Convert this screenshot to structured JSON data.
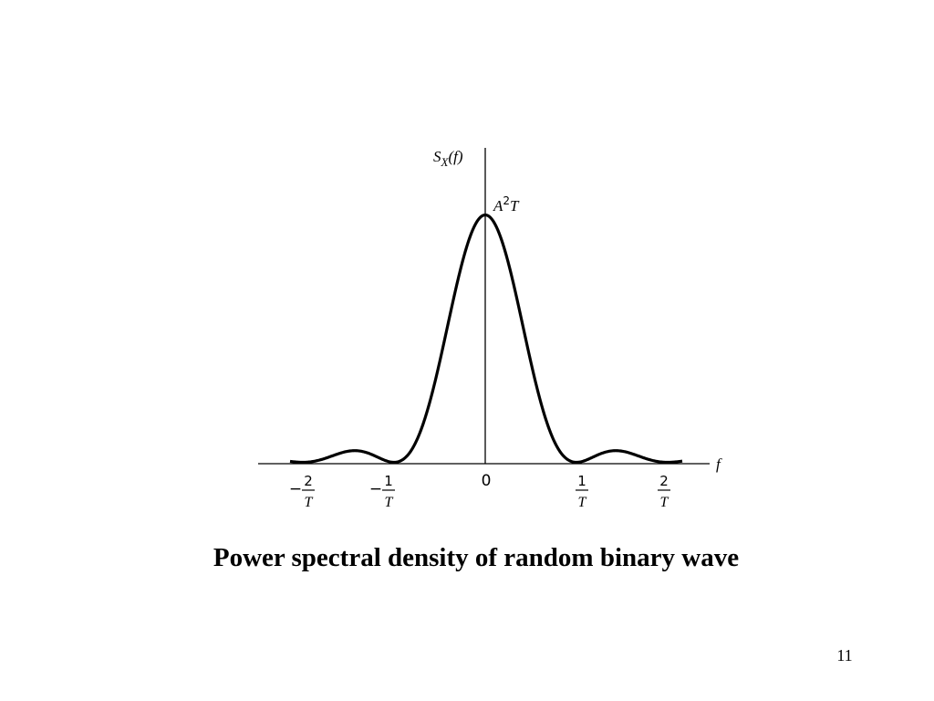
{
  "figure": {
    "y_axis_label": {
      "base": "S",
      "sub": "X",
      "arg": "(f)"
    },
    "peak_label": {
      "base": "A",
      "sup": "2",
      "tail": "T"
    },
    "x_axis_label": "f",
    "origin_label": "0",
    "tick_labels": [
      {
        "sign": "−",
        "num": "2",
        "den": "T"
      },
      {
        "sign": "−",
        "num": "1",
        "den": "T"
      },
      {
        "num": "1",
        "den": "T"
      },
      {
        "num": "2",
        "den": "T"
      }
    ]
  },
  "caption": "Power spectral density of random binary wave",
  "page_number": "11"
}
